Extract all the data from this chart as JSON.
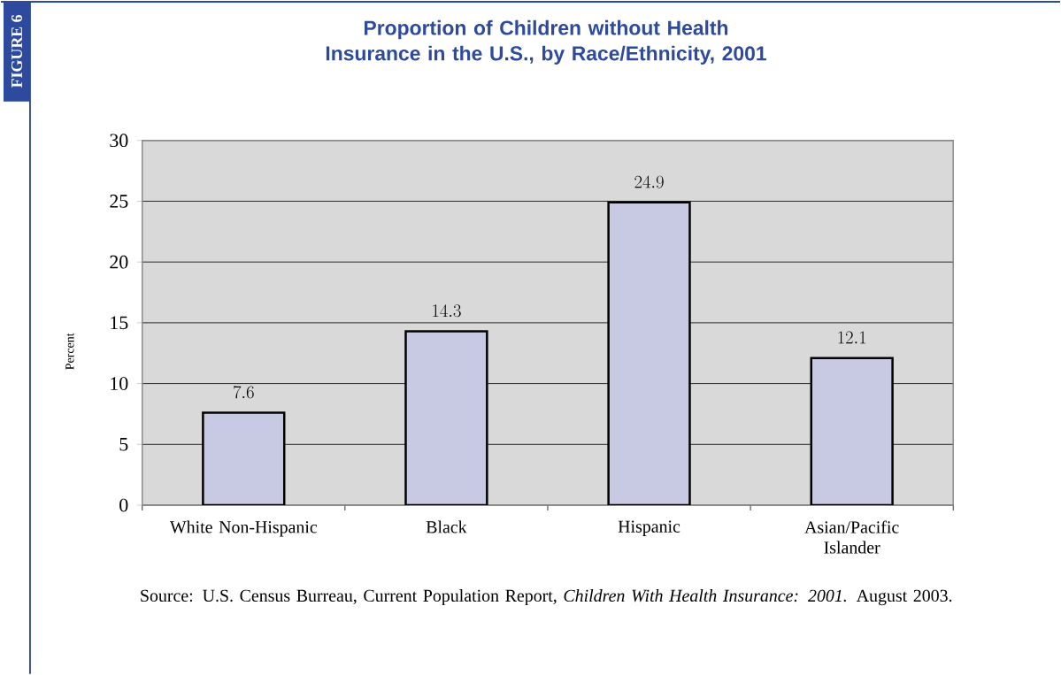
{
  "chart_data": {
    "type": "bar",
    "title": "Proportion of Children without Health Insurance in the U.S., by Race/Ethnicity, 2001",
    "ylabel": "Percent",
    "categories": [
      "White Non-Hispanic",
      "Black",
      "Hispanic",
      "Asian/Pacific Islander"
    ],
    "values": [
      7.6,
      14.3,
      24.9,
      12.1
    ],
    "color": "#c8c9e3",
    "ylim": [
      0,
      30
    ],
    "yticks": [
      0,
      5,
      10,
      15,
      20,
      25,
      30
    ],
    "grid": "y",
    "data_labels": true,
    "annotations": [
      "FIGURE 6",
      "Source:  U.S. Census Burreau, Current Population Report, *Children With Health Insurance: 2001.* August 2003."
    ]
  }
}
